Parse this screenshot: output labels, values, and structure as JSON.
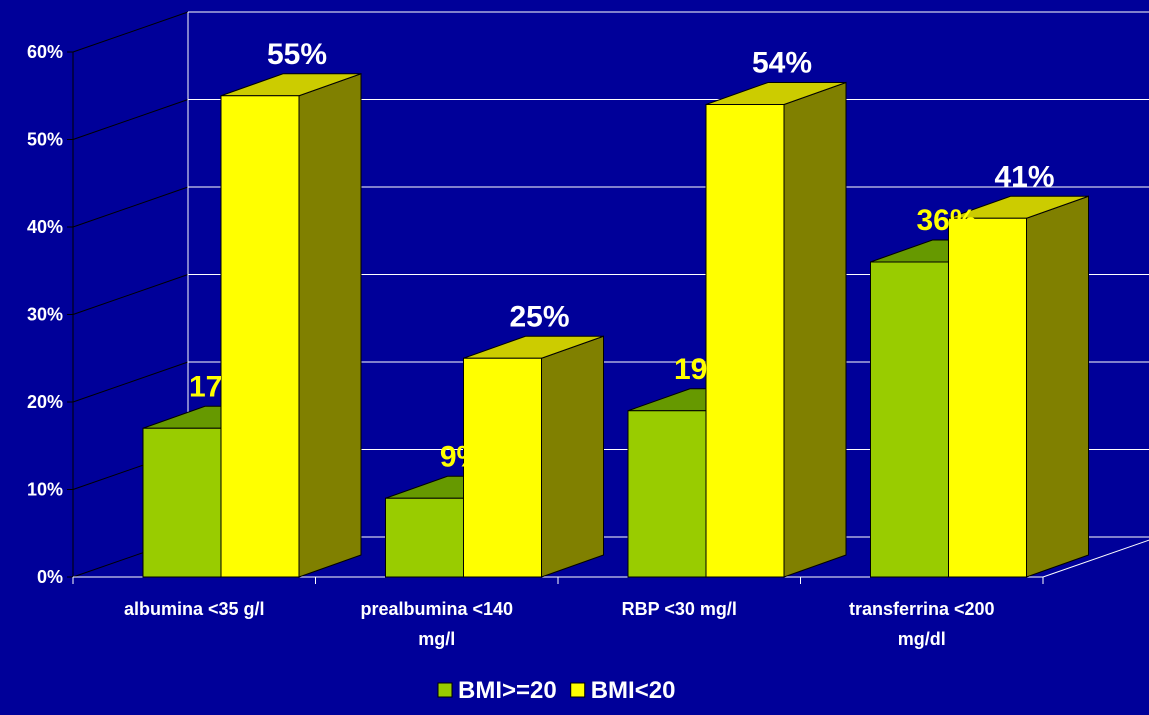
{
  "chart_data": {
    "type": "bar",
    "categories": [
      [
        "albumina <35 g/l"
      ],
      [
        "prealbumina <140",
        "mg/l"
      ],
      [
        "RBP <30 mg/l"
      ],
      [
        "transferrina <200",
        "mg/dl"
      ]
    ],
    "series": [
      {
        "name": "BMI>=20",
        "values": [
          17,
          9,
          19,
          36
        ],
        "labels": [
          "17%",
          "9%",
          "19%",
          "36%"
        ],
        "color": "#99cc00",
        "label_color": "#ffff00"
      },
      {
        "name": "BMI<20",
        "values": [
          55,
          25,
          54,
          41
        ],
        "labels": [
          "55%",
          "25%",
          "54%",
          "41%"
        ],
        "color": "#ffff00",
        "label_color": "#ffffff"
      }
    ],
    "y_ticks": [
      "0%",
      "10%",
      "20%",
      "30%",
      "40%",
      "50%",
      "60%"
    ],
    "ylim": [
      0,
      60
    ],
    "grid": true,
    "legend": "bottom",
    "colors": {
      "background": "#000099",
      "green_front": "#99cc00",
      "green_side": "#4d6600",
      "green_top": "#669900",
      "yellow_front": "#ffff00",
      "yellow_side": "#808000",
      "yellow_top": "#cccc00",
      "grid": "#ffffff"
    }
  }
}
